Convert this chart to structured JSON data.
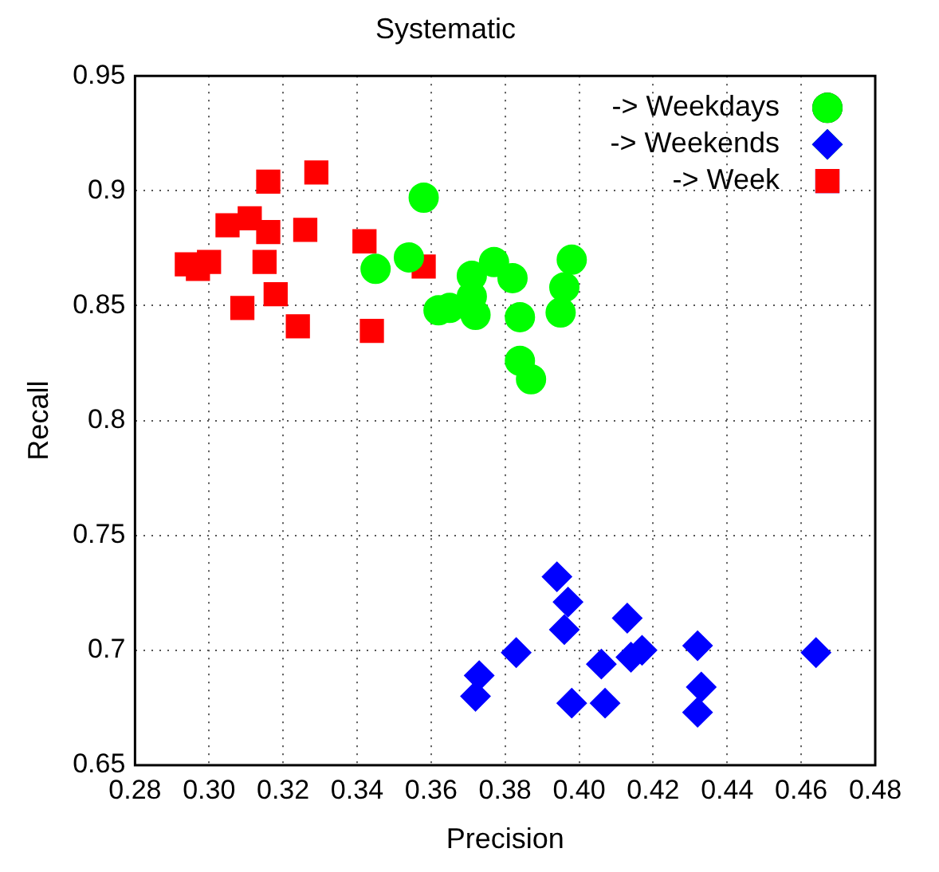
{
  "chart_data": {
    "type": "scatter",
    "title": "Systematic",
    "xlabel": "Precision",
    "ylabel": "Recall",
    "xlim": [
      0.28,
      0.48
    ],
    "xticks": [
      0.28,
      {
        "value": 0.3,
        "label": "0.30"
      },
      0.32,
      0.34,
      0.36,
      0.38,
      {
        "value": 0.4,
        "label": "0.40"
      },
      0.42,
      0.44,
      0.46,
      0.48
    ],
    "ylim": [
      0.65,
      0.95
    ],
    "yticks": [
      0.65,
      0.7,
      0.75,
      0.8,
      0.85,
      0.9,
      0.95
    ],
    "grid": true,
    "legend": "top right",
    "series": [
      {
        "name": "-> Weekdays",
        "color": "#00ff00",
        "marker": "circle",
        "x": [
          0.358,
          0.354,
          0.345,
          0.377,
          0.371,
          0.382,
          0.398,
          0.396,
          0.371,
          0.362,
          0.365,
          0.372,
          0.384,
          0.395,
          0.384,
          0.387
        ],
        "values": [
          0.897,
          0.871,
          0.866,
          0.869,
          0.863,
          0.862,
          0.87,
          0.858,
          0.854,
          0.848,
          0.849,
          0.846,
          0.845,
          0.847,
          0.826,
          0.818
        ]
      },
      {
        "name": "-> Weekends",
        "color": "#0000ff",
        "marker": "diamond",
        "x": [
          0.394,
          0.397,
          0.396,
          0.413,
          0.383,
          0.373,
          0.372,
          0.398,
          0.407,
          0.406,
          0.414,
          0.417,
          0.432,
          0.433,
          0.432,
          0.464
        ],
        "values": [
          0.732,
          0.721,
          0.709,
          0.714,
          0.699,
          0.689,
          0.68,
          0.677,
          0.677,
          0.694,
          0.697,
          0.7,
          0.702,
          0.684,
          0.673,
          0.699
        ]
      },
      {
        "name": "-> Week",
        "color": "#ff0000",
        "marker": "square",
        "x": [
          0.316,
          0.329,
          0.305,
          0.311,
          0.316,
          0.326,
          0.342,
          0.358,
          0.294,
          0.3,
          0.297,
          0.315,
          0.318,
          0.309,
          0.324,
          0.344
        ],
        "values": [
          0.904,
          0.908,
          0.885,
          0.888,
          0.882,
          0.883,
          0.878,
          0.867,
          0.868,
          0.869,
          0.866,
          0.869,
          0.855,
          0.849,
          0.841,
          0.839
        ]
      }
    ]
  }
}
